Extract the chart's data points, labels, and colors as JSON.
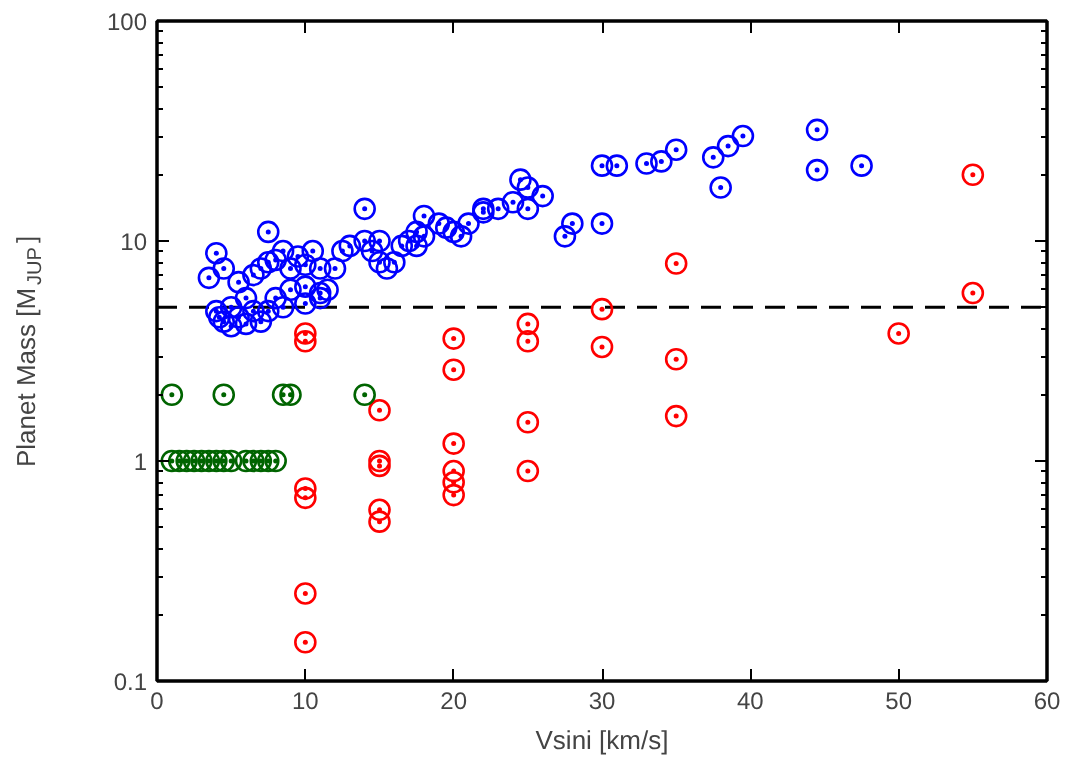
{
  "chart_data": {
    "type": "scatter",
    "xlabel": "Vsini [km/s]",
    "ylabel": "Planet Mass [M$_{JUP}$]",
    "log": "y",
    "xlim": [
      0,
      60
    ],
    "ylim": [
      0.1,
      100
    ],
    "xticks": [
      0,
      10,
      20,
      30,
      40,
      50,
      60
    ],
    "yticks": [
      0.1,
      1,
      10,
      100
    ],
    "marker": "circle",
    "grid": false,
    "ref_lines": [
      {
        "axis": "y",
        "value": 5,
        "color": "#000000",
        "line_style": "dashed"
      }
    ],
    "series": [
      {
        "color": "#0000ff",
        "x": [
          3.5,
          4,
          4.5,
          4,
          4.2,
          4.5,
          5,
          5,
          5.5,
          5.5,
          6,
          6,
          6.5,
          6.5,
          7,
          7,
          7.5,
          7.5,
          7.5,
          8,
          8,
          8.5,
          8.5,
          9,
          9,
          9.5,
          10,
          10,
          10,
          10.5,
          11,
          11,
          11,
          11.5,
          12,
          12.5,
          13,
          14,
          14,
          14.5,
          15,
          15,
          15.5,
          16,
          16.5,
          17,
          17.5,
          17.5,
          18,
          18,
          19,
          19.5,
          20,
          20.5,
          21,
          22,
          22,
          23,
          24,
          24.5,
          25,
          25,
          26,
          27.5,
          28,
          30,
          30,
          31,
          33,
          34,
          35,
          37.5,
          38,
          38.5,
          39.5,
          44.5,
          44.5,
          47.5
        ],
        "values": [
          6.8,
          8.8,
          7.5,
          4.8,
          4.5,
          4.3,
          4.1,
          5,
          4.5,
          6.5,
          4.2,
          5.5,
          4.8,
          7,
          7.5,
          4.3,
          11,
          8,
          4.8,
          5.5,
          8.2,
          5,
          9,
          6,
          7.5,
          8.5,
          6.2,
          5.2,
          7.8,
          9,
          5.8,
          5.5,
          7.5,
          6,
          7.5,
          9,
          9.5,
          14,
          10,
          9,
          8,
          10,
          7.5,
          8,
          9.5,
          10,
          9.5,
          11,
          13,
          10.5,
          12,
          11.5,
          11,
          10.5,
          12,
          14,
          13.5,
          14,
          15,
          19,
          17.5,
          14,
          16,
          10.5,
          12,
          12,
          22,
          22,
          22.5,
          23,
          26,
          24,
          17.5,
          27,
          30,
          32,
          21,
          22
        ]
      },
      {
        "color": "#ff0000",
        "x": [
          10,
          10,
          10,
          10,
          10,
          10,
          15,
          15,
          15,
          15,
          15,
          20,
          20,
          20,
          20,
          20,
          20,
          25,
          25,
          25,
          25,
          30,
          30,
          35,
          35,
          35,
          50,
          55,
          55
        ],
        "values": [
          3.8,
          3.5,
          0.75,
          0.68,
          0.25,
          0.15,
          1.7,
          1.0,
          0.95,
          0.6,
          0.53,
          3.6,
          2.6,
          1.2,
          0.9,
          0.8,
          0.7,
          4.2,
          3.5,
          1.5,
          0.9,
          4.9,
          3.3,
          7.9,
          2.9,
          1.6,
          3.8,
          20,
          5.8
        ]
      },
      {
        "color": "#006400",
        "x": [
          1,
          4.5,
          8.5,
          9,
          14,
          1,
          1.5,
          2,
          2.5,
          3,
          3.5,
          4,
          4.5,
          5,
          6,
          6.5,
          7,
          7.5,
          8
        ],
        "values": [
          2,
          2,
          2,
          2,
          2,
          1,
          1,
          1,
          1,
          1,
          1,
          1,
          1,
          1,
          1,
          1,
          1,
          1,
          1
        ]
      }
    ]
  }
}
